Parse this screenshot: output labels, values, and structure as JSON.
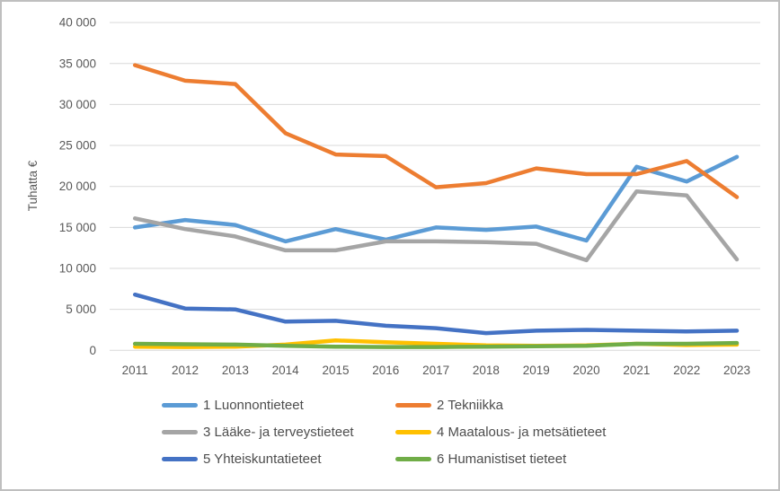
{
  "chart": {
    "y_tick_labels": [
      "0",
      "5 000",
      "10 000",
      "15 000",
      "20 000",
      "25 000",
      "30 000",
      "35 000",
      "40 000"
    ],
    "grid_color": "#d9d9d9",
    "tick_text_color": "#595959",
    "frame_border_color": "#bfbfbf"
  },
  "chart_data": {
    "type": "line",
    "title": "",
    "xlabel": "",
    "ylabel": "Tuhatta €",
    "ylim": [
      0,
      40000
    ],
    "ytick_step": 5000,
    "grid": true,
    "legend_position": "bottom",
    "x": [
      2011,
      2012,
      2013,
      2014,
      2015,
      2016,
      2017,
      2018,
      2019,
      2020,
      2021,
      2022,
      2023
    ],
    "series": [
      {
        "name": "1 Luonnontieteet",
        "color": "#5B9BD5",
        "values": [
          15000,
          15900,
          15300,
          13300,
          14800,
          13500,
          15000,
          14700,
          15100,
          13400,
          22400,
          20600,
          23600
        ]
      },
      {
        "name": "2 Tekniikka",
        "color": "#ED7D31",
        "values": [
          34800,
          32900,
          32500,
          26500,
          23900,
          23700,
          19900,
          20400,
          22200,
          21500,
          21500,
          23100,
          18700
        ]
      },
      {
        "name": "3 Lääke- ja terveystieteet",
        "color": "#A5A5A5",
        "values": [
          16100,
          14800,
          13900,
          12200,
          12200,
          13300,
          13300,
          13200,
          13000,
          11000,
          19400,
          18900,
          11100
        ]
      },
      {
        "name": "4 Maatalous- ja metsätieteet",
        "color": "#FFC000",
        "values": [
          450,
          400,
          450,
          700,
          1200,
          1000,
          800,
          600,
          550,
          600,
          800,
          650,
          700
        ]
      },
      {
        "name": "5 Yhteiskuntatieteet",
        "color": "#4472C4",
        "values": [
          6800,
          5100,
          5000,
          3500,
          3600,
          3000,
          2700,
          2100,
          2400,
          2500,
          2400,
          2300,
          2400
        ]
      },
      {
        "name": "6 Humanistiset tieteet",
        "color": "#70AD47",
        "values": [
          800,
          750,
          700,
          550,
          450,
          400,
          400,
          450,
          500,
          550,
          800,
          800,
          900
        ]
      }
    ]
  }
}
